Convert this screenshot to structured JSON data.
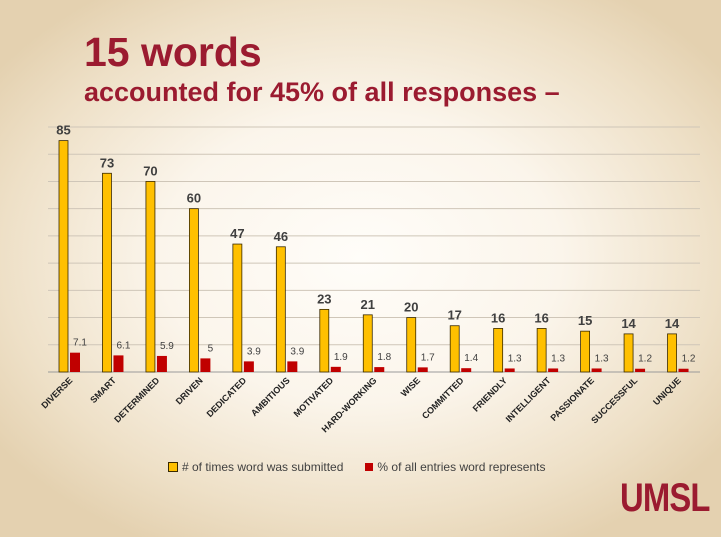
{
  "title": "15 words",
  "subtitle": "accounted for 45% of all responses –",
  "logo_text": "UMSL",
  "colors": {
    "brand": "#9b1b30",
    "series_count": "#ffc000",
    "series_count_outline": "#3a2a00",
    "series_pct": "#c00000"
  },
  "chart_data": {
    "type": "bar",
    "categories": [
      "DIVERSE",
      "SMART",
      "DETERMINED",
      "DRIVEN",
      "DEDICATED",
      "AMBITIOUS",
      "MOTIVATED",
      "HARD-WORKING",
      "WISE",
      "COMMITTED",
      "FRIENDLY",
      "INTELLIGENT",
      "PASSIONATE",
      "SUCCESSFUL",
      "UNIQUE"
    ],
    "series": [
      {
        "name": "# of times word was submitted",
        "values": [
          85,
          73,
          70,
          60,
          47,
          46,
          23,
          21,
          20,
          17,
          16,
          16,
          15,
          14,
          14
        ]
      },
      {
        "name": "% of all entries word represents",
        "values": [
          7.1,
          6.1,
          5.9,
          5,
          3.9,
          3.9,
          1.9,
          1.8,
          1.7,
          1.4,
          1.3,
          1.3,
          1.3,
          1.2,
          1.2
        ]
      }
    ],
    "ylim": [
      0,
      90
    ],
    "grid": true,
    "legend_position": "bottom"
  }
}
